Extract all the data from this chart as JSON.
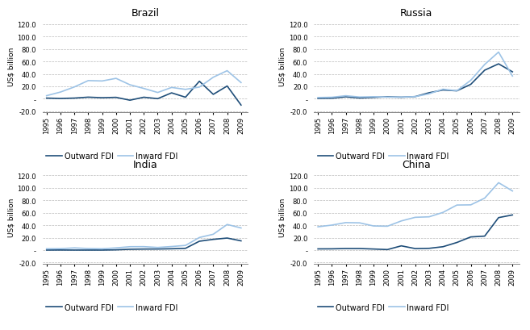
{
  "years": [
    1995,
    1996,
    1997,
    1998,
    1999,
    2000,
    2001,
    2002,
    2003,
    2004,
    2005,
    2006,
    2007,
    2008,
    2009
  ],
  "brazil": {
    "outward": [
      1.1,
      0.5,
      1.1,
      2.6,
      1.7,
      2.3,
      -2.3,
      2.5,
      0.2,
      9.5,
      2.5,
      28.2,
      7.1,
      20.5,
      -10.1
    ],
    "inward": [
      5.0,
      10.8,
      19.0,
      29.2,
      28.6,
      32.8,
      22.5,
      16.6,
      10.1,
      18.2,
      15.1,
      18.8,
      34.6,
      45.1,
      26.0
    ]
  },
  "russia": {
    "outward": [
      0.6,
      0.9,
      3.2,
      1.3,
      2.2,
      3.2,
      2.5,
      3.5,
      9.7,
      14.1,
      12.8,
      23.2,
      45.9,
      56.1,
      43.3
    ],
    "inward": [
      2.0,
      2.4,
      4.9,
      2.8,
      3.3,
      2.7,
      2.7,
      3.5,
      8.0,
      15.4,
      12.9,
      29.7,
      55.1,
      75.0,
      36.5
    ]
  },
  "india": {
    "outward": [
      0.1,
      0.2,
      0.1,
      0.1,
      0.1,
      0.5,
      1.4,
      1.7,
      1.8,
      2.2,
      2.9,
      14.3,
      17.3,
      19.4,
      14.9
    ],
    "inward": [
      2.2,
      2.4,
      3.6,
      2.6,
      2.2,
      3.6,
      5.5,
      5.6,
      4.3,
      5.8,
      7.6,
      20.3,
      25.5,
      41.2,
      35.6
    ]
  },
  "china": {
    "outward": [
      2.0,
      2.1,
      2.6,
      2.6,
      1.8,
      0.9,
      6.9,
      2.5,
      2.9,
      5.5,
      12.3,
      21.2,
      22.5,
      52.2,
      56.5
    ],
    "inward": [
      37.5,
      40.2,
      44.2,
      43.8,
      38.8,
      38.4,
      46.9,
      52.7,
      53.5,
      60.6,
      72.4,
      72.7,
      83.5,
      108.3,
      95.0
    ]
  },
  "titles": [
    "Brazil",
    "Russia",
    "India",
    "China"
  ],
  "ylabel": "US$ billion",
  "outward_color": "#1f4e79",
  "inward_color": "#9dc3e6",
  "outward_label": "Outward FDI",
  "inward_label": "Inward FDI",
  "background_color": "#ffffff",
  "title_fontsize": 9,
  "axis_label_fontsize": 6.5,
  "tick_fontsize": 6.0,
  "legend_fontsize": 7.0
}
